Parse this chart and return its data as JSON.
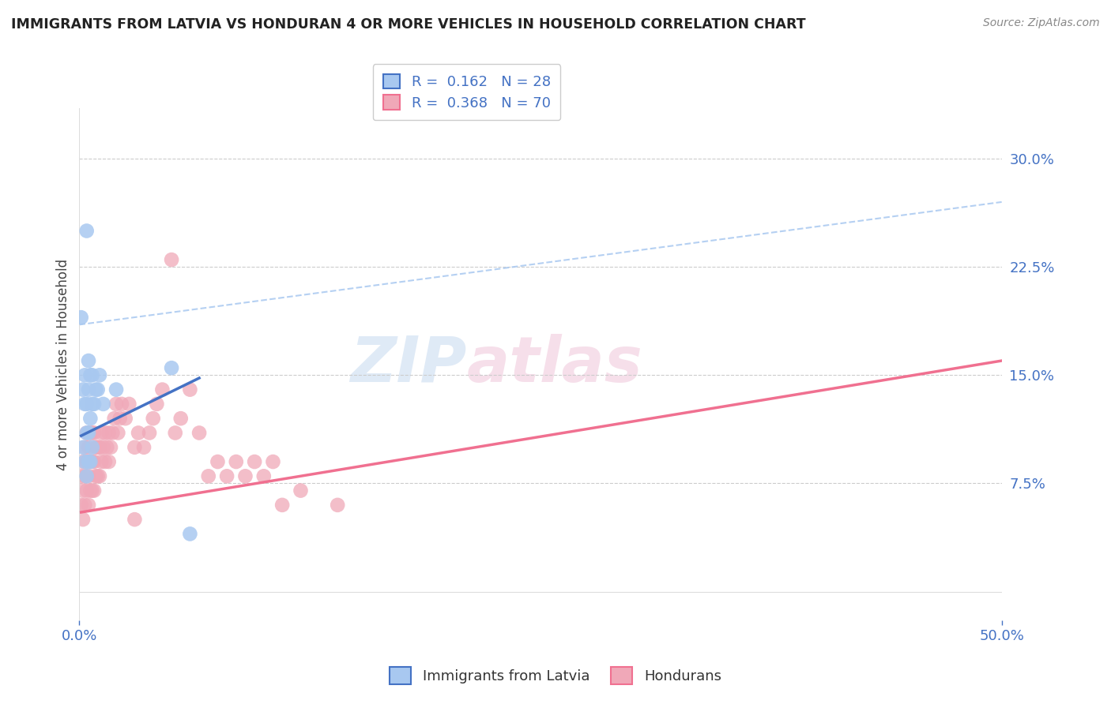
{
  "title": "IMMIGRANTS FROM LATVIA VS HONDURAN 4 OR MORE VEHICLES IN HOUSEHOLD CORRELATION CHART",
  "source": "Source: ZipAtlas.com",
  "ylabel": "4 or more Vehicles in Household",
  "ytick_vals": [
    0.075,
    0.15,
    0.225,
    0.3
  ],
  "xlim": [
    0.0,
    0.5
  ],
  "ylim": [
    -0.02,
    0.335
  ],
  "legend_r1": "R =  0.162   N = 28",
  "legend_r2": "R =  0.368   N = 70",
  "latvia_color": "#a8c8f0",
  "honduran_color": "#f0a8b8",
  "latvia_line_color": "#4472c4",
  "honduran_line_color": "#f07090",
  "trend_line_color": "#a8c8f0",
  "background_color": "#ffffff",
  "watermark_zip": "ZIP",
  "watermark_atlas": "atlas",
  "tick_color": "#4472c4",
  "latvia_points_x": [
    0.001,
    0.002,
    0.002,
    0.003,
    0.003,
    0.003,
    0.004,
    0.004,
    0.004,
    0.004,
    0.005,
    0.005,
    0.005,
    0.005,
    0.006,
    0.006,
    0.006,
    0.007,
    0.007,
    0.007,
    0.008,
    0.009,
    0.01,
    0.011,
    0.013,
    0.02,
    0.05,
    0.06
  ],
  "latvia_points_y": [
    0.19,
    0.1,
    0.14,
    0.09,
    0.13,
    0.15,
    0.08,
    0.11,
    0.13,
    0.25,
    0.09,
    0.11,
    0.14,
    0.16,
    0.09,
    0.12,
    0.15,
    0.1,
    0.13,
    0.15,
    0.13,
    0.14,
    0.14,
    0.15,
    0.13,
    0.14,
    0.155,
    0.04
  ],
  "honduran_points_x": [
    0.001,
    0.001,
    0.002,
    0.002,
    0.002,
    0.003,
    0.003,
    0.003,
    0.004,
    0.004,
    0.004,
    0.005,
    0.005,
    0.005,
    0.006,
    0.006,
    0.006,
    0.007,
    0.007,
    0.007,
    0.008,
    0.008,
    0.008,
    0.009,
    0.009,
    0.01,
    0.01,
    0.011,
    0.011,
    0.012,
    0.012,
    0.013,
    0.014,
    0.014,
    0.015,
    0.016,
    0.016,
    0.017,
    0.018,
    0.019,
    0.02,
    0.021,
    0.022,
    0.023,
    0.025,
    0.027,
    0.03,
    0.03,
    0.032,
    0.035,
    0.038,
    0.04,
    0.042,
    0.045,
    0.05,
    0.052,
    0.055,
    0.06,
    0.065,
    0.07,
    0.075,
    0.08,
    0.085,
    0.09,
    0.095,
    0.1,
    0.105,
    0.11,
    0.12,
    0.14
  ],
  "honduran_points_y": [
    0.06,
    0.08,
    0.05,
    0.07,
    0.09,
    0.06,
    0.08,
    0.1,
    0.07,
    0.09,
    0.11,
    0.06,
    0.08,
    0.1,
    0.07,
    0.09,
    0.11,
    0.07,
    0.09,
    0.11,
    0.07,
    0.09,
    0.11,
    0.08,
    0.1,
    0.08,
    0.1,
    0.08,
    0.1,
    0.09,
    0.11,
    0.1,
    0.09,
    0.11,
    0.1,
    0.09,
    0.11,
    0.1,
    0.11,
    0.12,
    0.13,
    0.11,
    0.12,
    0.13,
    0.12,
    0.13,
    0.05,
    0.1,
    0.11,
    0.1,
    0.11,
    0.12,
    0.13,
    0.14,
    0.23,
    0.11,
    0.12,
    0.14,
    0.11,
    0.08,
    0.09,
    0.08,
    0.09,
    0.08,
    0.09,
    0.08,
    0.09,
    0.06,
    0.07,
    0.06
  ],
  "latvia_line_x0": 0.001,
  "latvia_line_x1": 0.065,
  "latvia_line_y0": 0.108,
  "latvia_line_y1": 0.148,
  "honduran_line_x0": 0.001,
  "honduran_line_x1": 0.5,
  "honduran_line_y0": 0.055,
  "honduran_line_y1": 0.16,
  "dashed_line_x0": 0.0,
  "dashed_line_x1": 0.5,
  "dashed_line_y0": 0.185,
  "dashed_line_y1": 0.27
}
